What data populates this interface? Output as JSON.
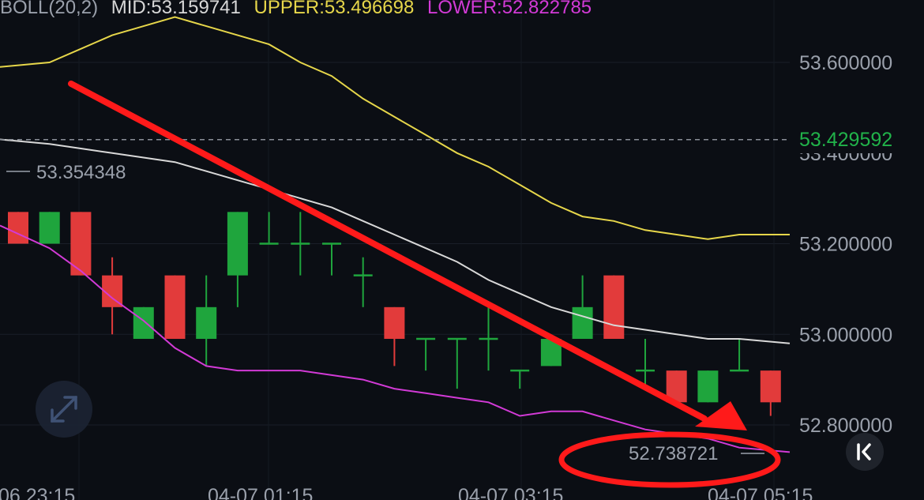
{
  "header": {
    "indicator": "BOLL(20,2)",
    "mid_label": "MID:53.159741",
    "upper_label": "UPPER:53.496698",
    "lower_label": "LOWER:52.822785"
  },
  "colors": {
    "background": "#0b0e14",
    "up": "#1fa53d",
    "down": "#e23b3b",
    "upper_band": "#e6d64a",
    "mid_band": "#d8d8d8",
    "lower_band": "#d23ad6",
    "annotation": "#ff1a1a",
    "price_text": "#9aa0ab",
    "current_price_text": "#21b34a",
    "header_text": "#9aa0ab"
  },
  "chart_data": {
    "type": "candlestick",
    "yticks": [
      "53.600000",
      "53.200000",
      "53.000000",
      "52.800000"
    ],
    "ytick_values": [
      53.6,
      53.2,
      53.0,
      52.8
    ],
    "xticks": [
      "06 23:15",
      "04-07 01:15",
      "04-07 03:15",
      "04-07 05:15"
    ],
    "current_price": "53.429592",
    "current_price_value": 53.429592,
    "mid_readout": "53.354348",
    "min_readout": "52.738721",
    "ylim": [
      52.6,
      53.7
    ],
    "candles": [
      {
        "o": 53.27,
        "h": 53.27,
        "l": 53.2,
        "c": 53.2
      },
      {
        "o": 53.2,
        "h": 53.27,
        "l": 53.2,
        "c": 53.27
      },
      {
        "o": 53.27,
        "h": 53.27,
        "l": 53.13,
        "c": 53.13
      },
      {
        "o": 53.13,
        "h": 53.17,
        "l": 53.0,
        "c": 53.06
      },
      {
        "o": 52.99,
        "h": 53.06,
        "l": 52.99,
        "c": 53.06
      },
      {
        "o": 53.13,
        "h": 53.13,
        "l": 52.99,
        "c": 52.99
      },
      {
        "o": 52.99,
        "h": 53.13,
        "l": 52.93,
        "c": 53.06
      },
      {
        "o": 53.13,
        "h": 53.27,
        "l": 53.06,
        "c": 53.27
      },
      {
        "o": 53.2,
        "h": 53.27,
        "l": 53.2,
        "c": 53.2
      },
      {
        "o": 53.2,
        "h": 53.27,
        "l": 53.13,
        "c": 53.2
      },
      {
        "o": 53.2,
        "h": 53.2,
        "l": 53.13,
        "c": 53.2
      },
      {
        "o": 53.13,
        "h": 53.17,
        "l": 53.06,
        "c": 53.13
      },
      {
        "o": 53.06,
        "h": 53.06,
        "l": 52.93,
        "c": 52.99
      },
      {
        "o": 52.99,
        "h": 52.99,
        "l": 52.92,
        "c": 52.99
      },
      {
        "o": 52.99,
        "h": 52.99,
        "l": 52.88,
        "c": 52.99
      },
      {
        "o": 52.99,
        "h": 53.06,
        "l": 52.92,
        "c": 52.99
      },
      {
        "o": 52.92,
        "h": 52.92,
        "l": 52.88,
        "c": 52.92
      },
      {
        "o": 52.93,
        "h": 52.99,
        "l": 52.93,
        "c": 52.99
      },
      {
        "o": 52.99,
        "h": 53.13,
        "l": 52.99,
        "c": 53.06
      },
      {
        "o": 53.13,
        "h": 53.13,
        "l": 52.99,
        "c": 52.99
      },
      {
        "o": 52.92,
        "h": 52.99,
        "l": 52.88,
        "c": 52.92
      },
      {
        "o": 52.92,
        "h": 52.92,
        "l": 52.85,
        "c": 52.85
      },
      {
        "o": 52.85,
        "h": 52.92,
        "l": 52.85,
        "c": 52.92
      },
      {
        "o": 52.92,
        "h": 52.99,
        "l": 52.92,
        "c": 52.92
      },
      {
        "o": 52.92,
        "h": 52.92,
        "l": 52.82,
        "c": 52.85
      }
    ],
    "upper_band": [
      53.59,
      53.6,
      53.63,
      53.66,
      53.68,
      53.7,
      53.68,
      53.66,
      53.64,
      53.6,
      53.57,
      53.52,
      53.48,
      53.44,
      53.4,
      53.37,
      53.33,
      53.29,
      53.26,
      53.25,
      53.23,
      53.22,
      53.21,
      53.22,
      53.22
    ],
    "mid_band": [
      53.43,
      53.42,
      53.41,
      53.4,
      53.39,
      53.38,
      53.36,
      53.34,
      53.32,
      53.3,
      53.28,
      53.25,
      53.22,
      53.19,
      53.16,
      53.12,
      53.09,
      53.06,
      53.04,
      53.02,
      53.01,
      53.0,
      52.99,
      52.99,
      52.98
    ],
    "lower_band": [
      53.24,
      53.19,
      53.14,
      53.08,
      53.03,
      52.97,
      52.93,
      52.92,
      52.92,
      52.92,
      52.91,
      52.9,
      52.88,
      52.87,
      52.86,
      52.85,
      52.82,
      52.83,
      52.83,
      52.81,
      52.79,
      52.78,
      52.77,
      52.75,
      52.74
    ]
  },
  "annotations": {
    "arrow": "red downward trend arrow",
    "circle": "red ellipse around lower band value"
  },
  "controls": {
    "expand_icon": "expand-icon",
    "scroll_icon": "scroll-to-latest-icon"
  }
}
